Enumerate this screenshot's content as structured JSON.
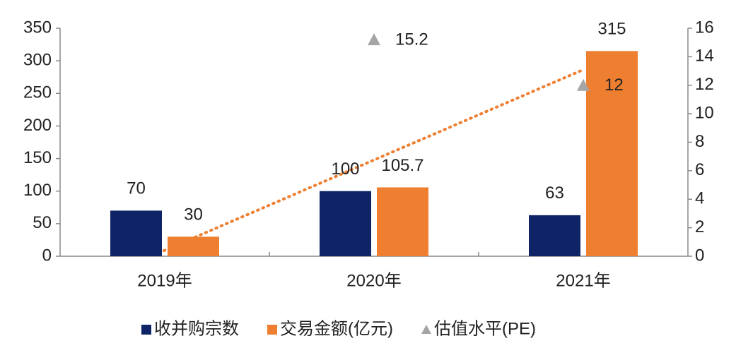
{
  "chart_data": {
    "type": "bar",
    "categories": [
      "2019年",
      "2020年",
      "2021年"
    ],
    "series": [
      {
        "name": "收并购宗数",
        "color": "#0f2466",
        "values": [
          70,
          100,
          63
        ]
      },
      {
        "name": "交易金额(亿元)",
        "color": "#ee7f30",
        "values": [
          30,
          105.7,
          315
        ]
      },
      {
        "name": "估值水平(PE)",
        "type": "scatter",
        "axis": "y2",
        "color": "#a5a5a5",
        "values": [
          null,
          15.2,
          12
        ]
      }
    ],
    "ylim": [
      0,
      350
    ],
    "yticks": [
      0,
      50,
      100,
      150,
      200,
      250,
      300,
      350
    ],
    "y2lim": [
      0,
      16
    ],
    "y2ticks": [
      0,
      2,
      4,
      6,
      8,
      10,
      12,
      14,
      16
    ],
    "legend": "bottom"
  }
}
